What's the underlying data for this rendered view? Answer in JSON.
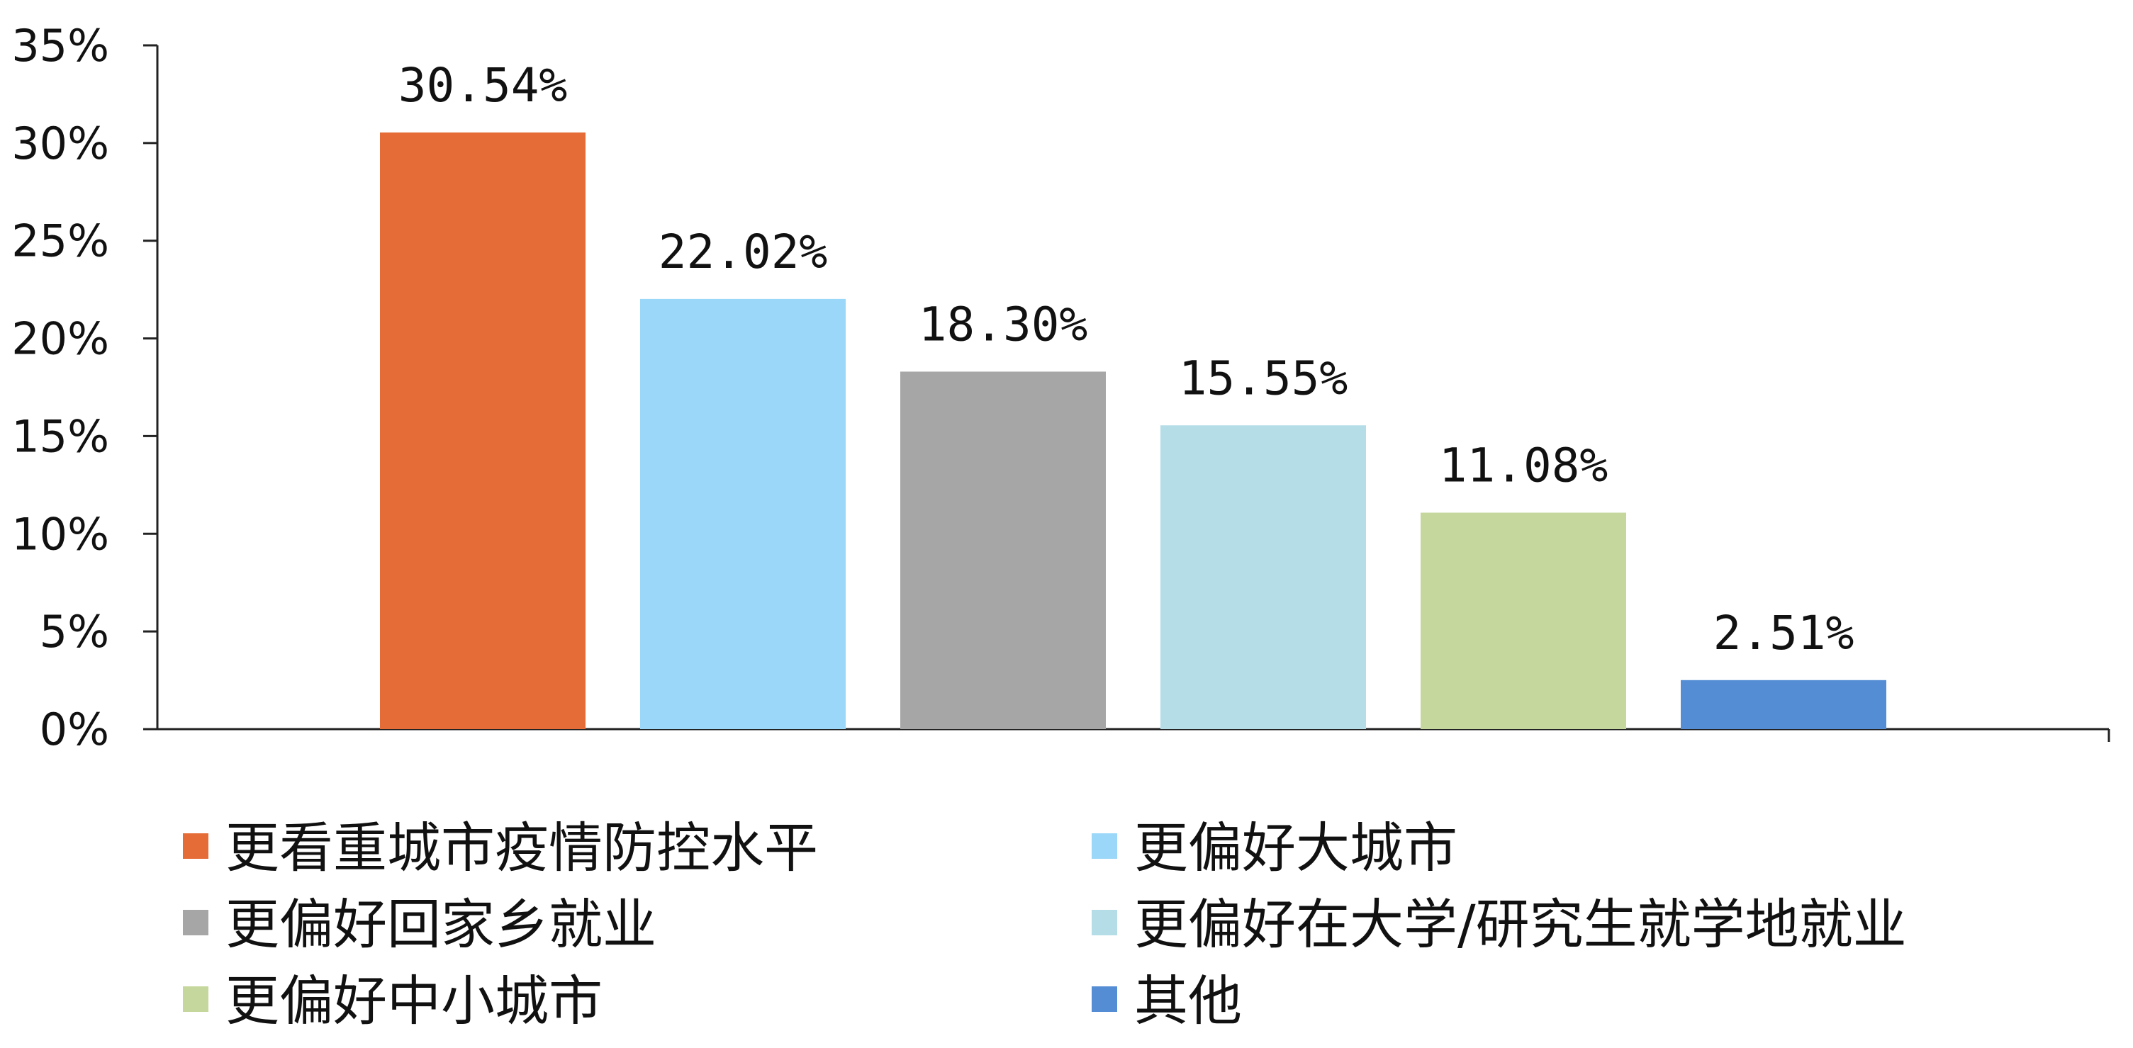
{
  "chart_data": {
    "type": "bar",
    "categories": [
      "更看重城市疫情防控水平",
      "更偏好大城市",
      "更偏好回家乡就业",
      "更偏好在大学/研究生就学地就业",
      "更偏好中小城市",
      "其他"
    ],
    "values": [
      30.54,
      22.02,
      18.3,
      15.55,
      11.08,
      2.51
    ],
    "data_labels": [
      "30.54%",
      "22.02%",
      "18.30%",
      "15.55%",
      "11.08%",
      "2.51%"
    ],
    "colors": [
      "#E66C37",
      "#9BD7F8",
      "#A6A6A6",
      "#B5DDE8",
      "#C5D79C",
      "#548DD4"
    ],
    "y_ticks": [
      0,
      5,
      10,
      15,
      20,
      25,
      30,
      35
    ],
    "y_tick_labels": [
      "0%",
      "5%",
      "10%",
      "15%",
      "20%",
      "25%",
      "30%",
      "35%"
    ],
    "ylim": [
      0,
      35
    ],
    "grid": false,
    "legend_position": "bottom",
    "title": "",
    "xlabel": "",
    "ylabel": ""
  }
}
